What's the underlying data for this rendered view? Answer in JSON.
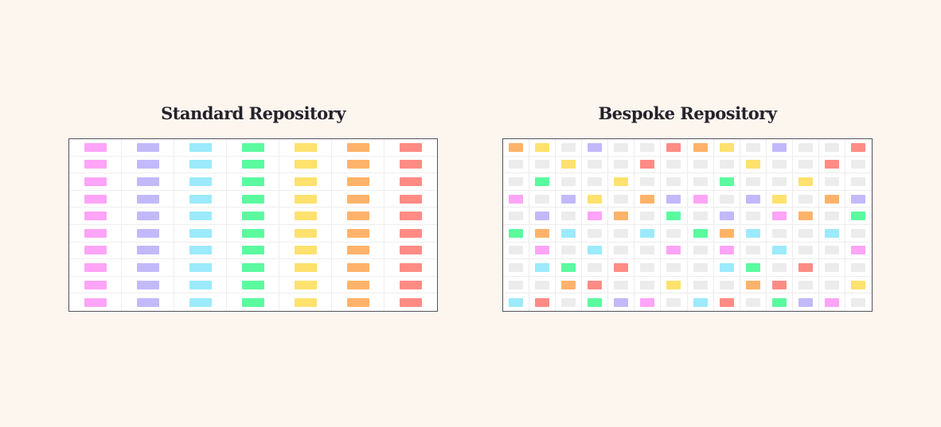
{
  "left": {
    "title": "Standard Repository",
    "columns": [
      "#ffa4f7",
      "#c2b9fb",
      "#9ceafb",
      "#5bfa9f",
      "#ffe16d",
      "#ffb36a",
      "#ff8b85"
    ],
    "rows": 10
  },
  "right": {
    "title": "Bespoke Repository",
    "grid": [
      [
        "orange",
        "yellow",
        "empty",
        "lavender",
        "empty",
        "empty",
        "red",
        "orange",
        "yellow",
        "empty",
        "lavender",
        "empty",
        "empty",
        "red"
      ],
      [
        "empty",
        "empty",
        "yellow",
        "empty",
        "empty",
        "red",
        "empty",
        "empty",
        "empty",
        "yellow",
        "empty",
        "empty",
        "red",
        "empty"
      ],
      [
        "empty",
        "green",
        "empty",
        "empty",
        "yellow",
        "empty",
        "empty",
        "empty",
        "green",
        "empty",
        "empty",
        "yellow",
        "empty",
        "empty"
      ],
      [
        "pink",
        "empty",
        "lavender",
        "yellow",
        "empty",
        "orange",
        "lavender",
        "pink",
        "empty",
        "lavender",
        "yellow",
        "empty",
        "orange",
        "lavender"
      ],
      [
        "empty",
        "lavender",
        "empty",
        "pink",
        "orange",
        "empty",
        "green",
        "empty",
        "lavender",
        "empty",
        "pink",
        "orange",
        "empty",
        "green"
      ],
      [
        "green",
        "orange",
        "cyan",
        "empty",
        "empty",
        "cyan",
        "empty",
        "green",
        "orange",
        "cyan",
        "empty",
        "empty",
        "cyan",
        "empty"
      ],
      [
        "empty",
        "pink",
        "empty",
        "cyan",
        "empty",
        "empty",
        "pink",
        "empty",
        "pink",
        "empty",
        "cyan",
        "empty",
        "empty",
        "pink"
      ],
      [
        "empty",
        "cyan",
        "green",
        "empty",
        "red",
        "empty",
        "empty",
        "empty",
        "cyan",
        "green",
        "empty",
        "red",
        "empty",
        "empty"
      ],
      [
        "empty",
        "empty",
        "orange",
        "red",
        "empty",
        "empty",
        "yellow",
        "empty",
        "empty",
        "orange",
        "red",
        "empty",
        "empty",
        "yellow"
      ],
      [
        "cyan",
        "red",
        "empty",
        "green",
        "lavender",
        "pink",
        "empty",
        "cyan",
        "red",
        "empty",
        "green",
        "lavender",
        "pink",
        "empty"
      ]
    ]
  },
  "colors": {
    "pink": "#ffa4f7",
    "lavender": "#c2b9fb",
    "cyan": "#9ceafb",
    "green": "#5bfa9f",
    "yellow": "#ffe16d",
    "orange": "#ffb36a",
    "red": "#ff8b85",
    "empty": "#ececec"
  }
}
